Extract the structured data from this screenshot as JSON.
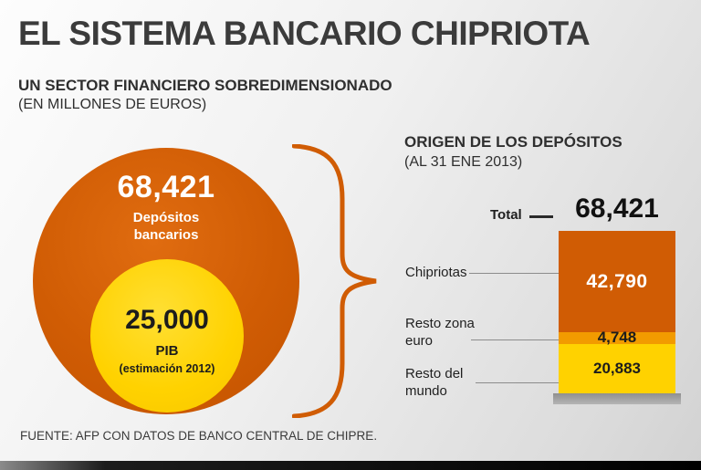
{
  "page": {
    "title": "EL SISTEMA BANCARIO CHIPRIOTA",
    "subtitle": "UN SECTOR FINANCIERO SOBREDIMENSIONADO",
    "unit_note": "(EN MILLONES DE EUROS)",
    "source": "FUENTE: AFP CON DATOS DE BANCO CENTRAL DE CHIPRE."
  },
  "colors": {
    "orange": "#d05c04",
    "amber": "#f29b00",
    "yellow": "#ffd200",
    "dark_text": "#2f2f2f"
  },
  "chart_data": [
    {
      "type": "bar",
      "variant": "nested-circles-comparison",
      "title": "",
      "categories": [
        "Depósitos bancarios",
        "PIB (estimación 2012)"
      ],
      "values": [
        68421,
        25000
      ],
      "circles": [
        {
          "label": "Depósitos bancarios",
          "value": 68421,
          "value_label": "68,421",
          "color": "#d05c04"
        },
        {
          "label": "PIB",
          "sublabel": "(estimación 2012)",
          "value": 25000,
          "value_label": "25,000",
          "color": "#ffd200"
        }
      ]
    },
    {
      "type": "bar",
      "variant": "stacked-single-column",
      "title": "ORIGEN DE LOS DEPÓSITOS",
      "subtitle": "(AL 31 ENE 2013)",
      "total_label": "Total",
      "total_value_label": "68,421",
      "total": 68421,
      "segments": [
        {
          "label": "Chipriotas",
          "value": 42790,
          "value_label": "42,790",
          "color": "#d05c04"
        },
        {
          "label": "Resto zona euro",
          "value": 4748,
          "value_label": "4,748",
          "color": "#f29b00"
        },
        {
          "label": "Resto del mundo",
          "value": 20883,
          "value_label": "20,883",
          "color": "#ffd200"
        }
      ]
    }
  ]
}
